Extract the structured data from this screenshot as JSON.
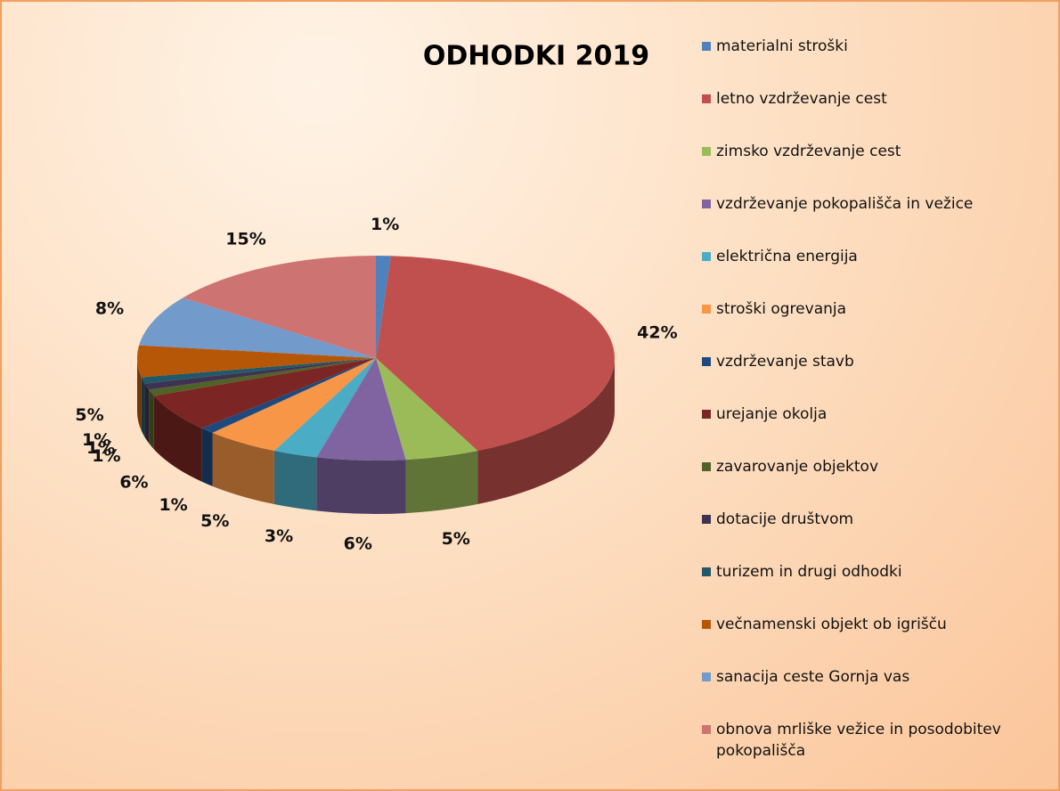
{
  "chart_data": {
    "type": "pie",
    "title": "ODHODKI 2019",
    "categories": [
      "materialni stroški",
      "letno vzdrževanje cest",
      "zimsko vzdrževanje cest",
      "vzdrževanje pokopališča in vežice",
      "električna energija",
      "stroški ogrevanja",
      "vzdrževanje stavb",
      "urejanje okolja",
      "zavarovanje objektov",
      "dotacije društvom",
      "turizem in drugi odhodki",
      "večnamenski objekt ob igrišču",
      "sanacija ceste Gornja vas",
      "obnova mrliške vežice in posodobitev pokopališča"
    ],
    "values": [
      1,
      42,
      5,
      6,
      3,
      5,
      1,
      6,
      1,
      1,
      1,
      5,
      8,
      15
    ],
    "value_labels": [
      "1%",
      "42%",
      "5%",
      "6%",
      "3%",
      "5%",
      "1%",
      "6%",
      "1%",
      "1%",
      "1%",
      "5%",
      "8%",
      "15%"
    ],
    "colors": [
      "#4f81bd",
      "#c0504d",
      "#9bbb59",
      "#8064a2",
      "#4bacc6",
      "#f79646",
      "#1f497d",
      "#7b2624",
      "#4f6228",
      "#3f3151",
      "#215968",
      "#b65708",
      "#729aca",
      "#cd7371"
    ],
    "legend": "right"
  }
}
